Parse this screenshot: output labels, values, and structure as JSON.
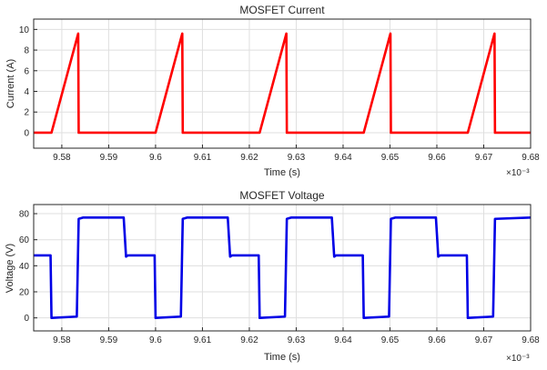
{
  "chart_data": [
    {
      "type": "line",
      "title": "MOSFET Current",
      "xlabel": "Time (s)",
      "ylabel": "Current (A)",
      "x_multiplier_label": "×10⁻³",
      "xlim": [
        9.574,
        9.68
      ],
      "ylim": [
        -1.5,
        11
      ],
      "x_tick_labels": [
        "9.58",
        "9.59",
        "9.6",
        "9.61",
        "9.62",
        "9.63",
        "9.64",
        "9.65",
        "9.66",
        "9.67",
        "9.68"
      ],
      "y_tick_labels": [
        "0",
        "2",
        "4",
        "6",
        "8",
        "10"
      ],
      "grid": true,
      "color": "#ff0000",
      "series": [
        {
          "x": [
            9.574,
            9.5778,
            9.5835,
            9.5836,
            9.6,
            9.6057,
            9.6058,
            9.6222,
            9.6279,
            9.628,
            9.6444,
            9.6501,
            9.6502,
            9.6666,
            9.6723,
            9.6724,
            9.68
          ],
          "y": [
            0,
            0,
            9.6,
            0,
            0,
            9.6,
            0,
            0,
            9.6,
            0,
            0,
            9.6,
            0,
            0,
            9.6,
            0,
            0
          ]
        }
      ]
    },
    {
      "type": "line",
      "title": "MOSFET Voltage",
      "xlabel": "Time (s)",
      "ylabel": "Voltage (V)",
      "x_multiplier_label": "×10⁻³",
      "xlim": [
        9.574,
        9.68
      ],
      "ylim": [
        -10,
        87
      ],
      "x_tick_labels": [
        "9.58",
        "9.59",
        "9.6",
        "9.61",
        "9.62",
        "9.63",
        "9.64",
        "9.65",
        "9.66",
        "9.67",
        "9.68"
      ],
      "y_tick_labels": [
        "0",
        "20",
        "40",
        "60",
        "80"
      ],
      "grid": true,
      "color": "#0000e6",
      "series": [
        {
          "x": [
            9.574,
            9.5776,
            9.5778,
            9.5832,
            9.5836,
            9.5845,
            9.5932,
            9.5937,
            9.5941,
            9.5998,
            9.6,
            9.6054,
            9.6058,
            9.6067,
            9.6154,
            9.6159,
            9.6163,
            9.622,
            9.6222,
            9.6276,
            9.628,
            9.6289,
            9.6376,
            9.6381,
            9.6385,
            9.6442,
            9.6444,
            9.6498,
            9.6502,
            9.6511,
            9.6598,
            9.6603,
            9.6607,
            9.6664,
            9.6666,
            9.672,
            9.6724,
            9.68
          ],
          "y": [
            48,
            48,
            0,
            1,
            76,
            77,
            77,
            47,
            48,
            48,
            0,
            1,
            76,
            77,
            77,
            47,
            48,
            48,
            0,
            1,
            76,
            77,
            77,
            47,
            48,
            48,
            0,
            1,
            76,
            77,
            77,
            47,
            48,
            48,
            0,
            1,
            76,
            77
          ]
        }
      ]
    }
  ]
}
